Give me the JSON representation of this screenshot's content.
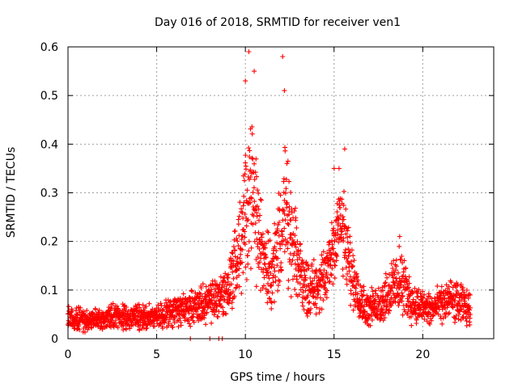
{
  "chart_data": {
    "type": "scatter",
    "title": "Day 016 of 2018, SRMTID for receiver ven1",
    "xlabel": "GPS time / hours",
    "ylabel": "SRMTID / TECUs",
    "xlim": [
      0,
      24
    ],
    "ylim": [
      0,
      0.6
    ],
    "xticks": [
      0,
      5,
      10,
      15,
      20
    ],
    "xtick_labels": [
      "0",
      "5",
      "10",
      "15",
      "20"
    ],
    "yticks": [
      0,
      0.1,
      0.2,
      0.3,
      0.4,
      0.5,
      0.6
    ],
    "ytick_labels": [
      "0",
      "0.1",
      "0.2",
      "0.3",
      "0.4",
      "0.5",
      "0.6"
    ],
    "grid": true,
    "marker": "plus",
    "color": "#ff0000",
    "series": [
      {
        "name": "SRMTID",
        "profile": [
          {
            "x": 0.0,
            "y": 0.045,
            "spread": 0.018
          },
          {
            "x": 1.0,
            "y": 0.038,
            "spread": 0.016
          },
          {
            "x": 2.0,
            "y": 0.04,
            "spread": 0.016
          },
          {
            "x": 3.0,
            "y": 0.048,
            "spread": 0.02
          },
          {
            "x": 4.0,
            "y": 0.045,
            "spread": 0.018
          },
          {
            "x": 5.0,
            "y": 0.045,
            "spread": 0.018
          },
          {
            "x": 6.0,
            "y": 0.055,
            "spread": 0.022
          },
          {
            "x": 7.0,
            "y": 0.065,
            "spread": 0.025
          },
          {
            "x": 8.0,
            "y": 0.075,
            "spread": 0.03
          },
          {
            "x": 9.0,
            "y": 0.1,
            "spread": 0.04
          },
          {
            "x": 9.8,
            "y": 0.2,
            "spread": 0.08
          },
          {
            "x": 10.3,
            "y": 0.33,
            "spread": 0.12
          },
          {
            "x": 10.8,
            "y": 0.2,
            "spread": 0.08
          },
          {
            "x": 11.5,
            "y": 0.13,
            "spread": 0.05
          },
          {
            "x": 12.2,
            "y": 0.26,
            "spread": 0.11
          },
          {
            "x": 12.7,
            "y": 0.18,
            "spread": 0.07
          },
          {
            "x": 13.5,
            "y": 0.1,
            "spread": 0.04
          },
          {
            "x": 14.5,
            "y": 0.12,
            "spread": 0.045
          },
          {
            "x": 15.3,
            "y": 0.25,
            "spread": 0.08
          },
          {
            "x": 16.0,
            "y": 0.13,
            "spread": 0.05
          },
          {
            "x": 16.8,
            "y": 0.06,
            "spread": 0.025
          },
          {
            "x": 17.5,
            "y": 0.07,
            "spread": 0.03
          },
          {
            "x": 18.7,
            "y": 0.12,
            "spread": 0.05
          },
          {
            "x": 19.5,
            "y": 0.07,
            "spread": 0.03
          },
          {
            "x": 20.5,
            "y": 0.06,
            "spread": 0.025
          },
          {
            "x": 21.5,
            "y": 0.08,
            "spread": 0.03
          },
          {
            "x": 22.2,
            "y": 0.07,
            "spread": 0.03
          },
          {
            "x": 22.7,
            "y": 0.06,
            "spread": 0.025
          }
        ],
        "peaks": [
          {
            "x": 10.2,
            "y": 0.59
          },
          {
            "x": 10.0,
            "y": 0.53
          },
          {
            "x": 10.5,
            "y": 0.55
          },
          {
            "x": 12.1,
            "y": 0.58
          },
          {
            "x": 12.2,
            "y": 0.51
          },
          {
            "x": 15.6,
            "y": 0.39
          },
          {
            "x": 15.0,
            "y": 0.35
          },
          {
            "x": 18.7,
            "y": 0.21
          }
        ],
        "zero_points": [
          {
            "x": 6.9,
            "y": 0.0
          },
          {
            "x": 8.0,
            "y": 0.0
          },
          {
            "x": 8.5,
            "y": 0.0
          },
          {
            "x": 8.7,
            "y": 0.0
          }
        ],
        "start_hour": 0.0,
        "end_hour": 22.75,
        "sample_step_hours": 0.01
      }
    ]
  }
}
